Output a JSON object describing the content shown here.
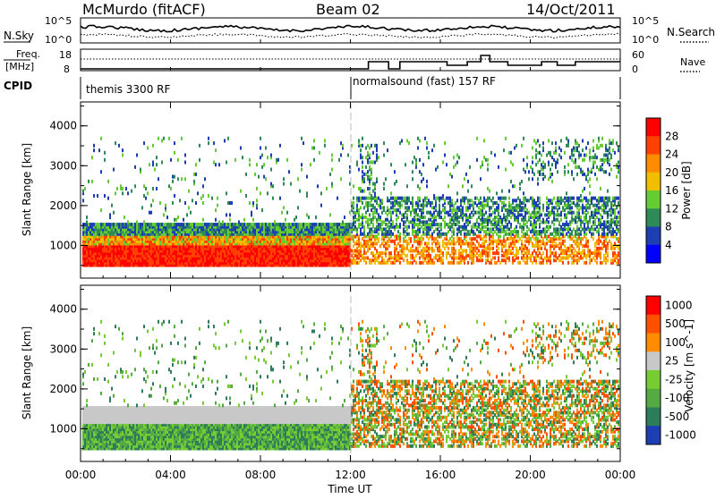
{
  "header": {
    "station": "McMurdo (fitACF)",
    "beam": "Beam 02",
    "date": "14/Oct/2011"
  },
  "summary_panels": {
    "nsky_label": "N.Sky",
    "nsearch_label": "N.Search",
    "nsky_ticks": [
      "10^5",
      "10^0"
    ],
    "nsearch_ticks": [
      "10^5",
      "10^0"
    ],
    "freq_label_1": "Freq.",
    "freq_label_2": "[MHz]",
    "freq_ticks": [
      "18",
      "8"
    ],
    "nave_label": "Nave",
    "nave_ticks": [
      "60",
      "0"
    ],
    "cpid_label": "CPID",
    "cpid_segments": [
      {
        "label": "themis 3300 RF",
        "start_hour": 0
      },
      {
        "label": "normalsound (fast) 157 RF",
        "start_hour": 12
      }
    ]
  },
  "colors": {
    "power_scale": [
      "#0000ff",
      "#1e3fb4",
      "#2e8b57",
      "#66cc33",
      "#f0c000",
      "#ff8c00",
      "#ff4000",
      "#ff0000"
    ],
    "velocity_scale": [
      "#1e3fb4",
      "#2e7d5a",
      "#55aa44",
      "#77cc33",
      "#c8c8c8",
      "#ff8c00",
      "#ff5000",
      "#ff0000"
    ],
    "gray": "#c8c8c8"
  },
  "chart_data": [
    {
      "type": "heatmap",
      "quantity": "Power",
      "ylabel": "Slant Range [km]",
      "xlabel": "Time UT",
      "x_ticks": [
        "00:00",
        "04:00",
        "08:00",
        "12:00",
        "16:00",
        "20:00",
        "00:00"
      ],
      "x_range_hours": [
        0,
        24
      ],
      "y_ticks": [
        "1000",
        "2000",
        "3000",
        "4000"
      ],
      "y_range_km": [
        180,
        4600
      ],
      "colorbar_label": "Power [dB]",
      "colorbar_ticks": [
        "4",
        "8",
        "12",
        "16",
        "20",
        "24",
        "28"
      ],
      "color_levels": 8
    },
    {
      "type": "heatmap",
      "quantity": "Velocity",
      "ylabel": "Slant Range [km]",
      "xlabel": "Time UT",
      "x_ticks": [
        "00:00",
        "04:00",
        "08:00",
        "12:00",
        "16:00",
        "20:00",
        "00:00"
      ],
      "x_range_hours": [
        0,
        24
      ],
      "y_ticks": [
        "1000",
        "2000",
        "3000",
        "4000"
      ],
      "y_range_km": [
        180,
        4600
      ],
      "colorbar_label": "Velocity [m s^-1]",
      "colorbar_ticks": [
        "1000",
        "500",
        "100",
        "25",
        "-25",
        "-100",
        "-500",
        "-1000"
      ],
      "color_levels": 8
    }
  ]
}
